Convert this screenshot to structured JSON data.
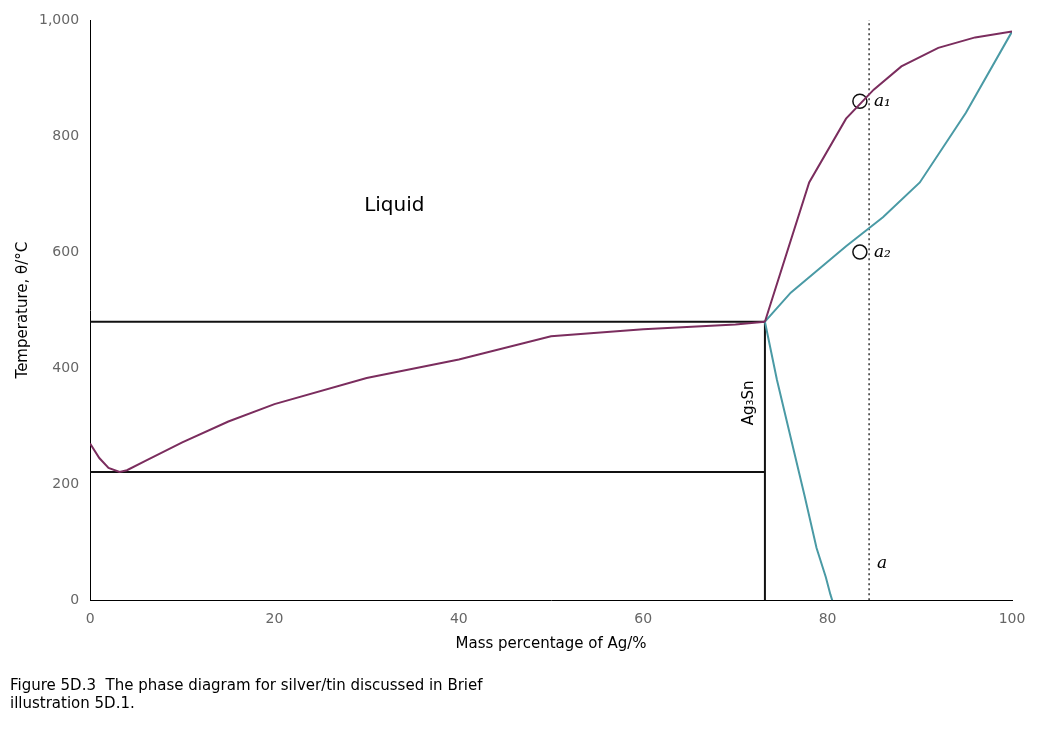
{
  "chart_data": {
    "type": "line",
    "xlabel": "Mass percentage of Ag/%",
    "ylabel": "Temperature, θ/°C",
    "xlim": [
      0,
      100
    ],
    "ylim": [
      0,
      1000
    ],
    "xticks": [
      0,
      20,
      40,
      60,
      80,
      100
    ],
    "yticks": [
      0,
      200,
      400,
      600,
      800,
      1000
    ],
    "grid": false,
    "caption": [
      "Figure 5D.3  The phase diagram for silver/tin discussed in Brief",
      "illustration 5D.1."
    ],
    "series": [
      {
        "color": "#7B2D5E",
        "line_style": "solid",
        "x": [
          0,
          1,
          2,
          3.2,
          4,
          6,
          10,
          15,
          20,
          30,
          40,
          50,
          60,
          70,
          73.2
        ],
        "values": [
          270,
          245,
          228,
          221,
          224,
          240,
          272,
          308,
          338,
          383,
          415,
          455,
          467,
          475,
          480
        ]
      },
      {
        "color": "#7B2D5E",
        "line_style": "solid",
        "x": [
          73.2,
          78,
          82,
          85,
          88,
          92,
          96,
          100
        ],
        "values": [
          480,
          720,
          830,
          880,
          920,
          952,
          970,
          980
        ]
      },
      {
        "color": "#4A9AA5",
        "line_style": "solid",
        "x": [
          73.2,
          76,
          79,
          82,
          86,
          90,
          95,
          100
        ],
        "values": [
          480,
          530,
          570,
          610,
          660,
          720,
          840,
          980
        ]
      },
      {
        "color": "#4A9AA5",
        "line_style": "solid",
        "x": [
          73.2,
          74.5,
          76,
          77.5,
          78.8,
          79.8,
          80.3,
          80.5
        ],
        "values": [
          480,
          380,
          280,
          180,
          90,
          40,
          10,
          0
        ]
      },
      {
        "color": "#111111",
        "line_style": "solid",
        "x": [
          0,
          73.2
        ],
        "values": [
          221,
          221
        ]
      },
      {
        "color": "#111111",
        "line_style": "solid",
        "x": [
          73.2,
          73.2
        ],
        "values": [
          0,
          480
        ]
      },
      {
        "color": "#111111",
        "line_style": "solid",
        "x": [
          0,
          73.2
        ],
        "values": [
          480,
          480
        ]
      },
      {
        "color": "#333333",
        "line_style": "dotted",
        "x": [
          84.5,
          84.5
        ],
        "values": [
          0,
          1000
        ]
      },
      {
        "type": "scatter",
        "marker": "circle",
        "color": "#111111",
        "x": [
          83.5,
          83.5
        ],
        "values": [
          860,
          600
        ]
      }
    ],
    "annotations": [
      {
        "text": "a₁",
        "x": 83.5,
        "y": 860
      },
      {
        "text": "a₂",
        "x": 83.5,
        "y": 600
      },
      {
        "text": "a",
        "x": 84.5,
        "y": 18
      },
      {
        "text": "Liquid",
        "x": 33,
        "y": 680
      },
      {
        "text": "Ag₃Sn",
        "x": 71.5,
        "y": 340,
        "orientation": "vertical"
      }
    ]
  }
}
